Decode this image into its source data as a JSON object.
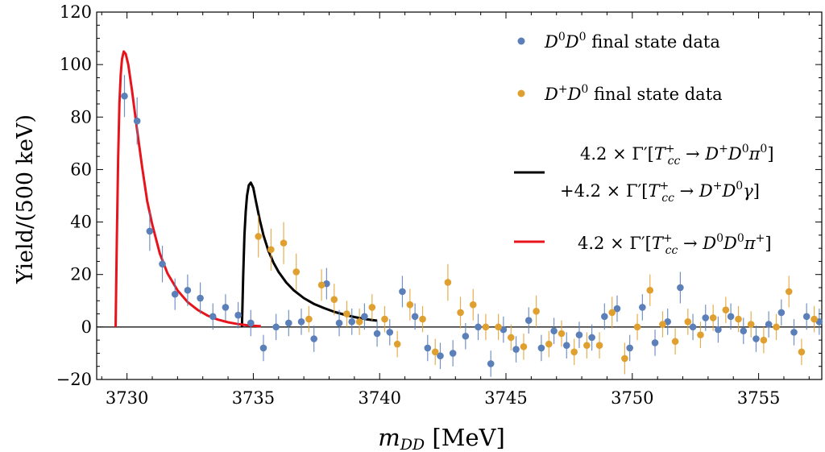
{
  "chart_data": {
    "type": "scatter",
    "xlabel": "m_DD [MeV]",
    "ylabel": "Yield/(500 keV)",
    "xlim": [
      3728.8,
      3757.5
    ],
    "ylim": [
      -20,
      120
    ],
    "x_ticks": [
      3730,
      3735,
      3740,
      3745,
      3750,
      3755
    ],
    "y_ticks": [
      -20,
      0,
      20,
      40,
      60,
      80,
      100,
      120
    ],
    "grid": false,
    "legend_position": "top-right",
    "series": [
      {
        "name": "D⁰D⁰ final state data",
        "kind": "points",
        "color": "#5b7fb8",
        "points": [
          [
            3729.9,
            88,
            8
          ],
          [
            3730.4,
            78.5,
            9
          ],
          [
            3730.9,
            36.5,
            7.5
          ],
          [
            3731.4,
            24,
            7
          ],
          [
            3731.9,
            12.5,
            6
          ],
          [
            3732.4,
            14,
            6
          ],
          [
            3732.9,
            11,
            6
          ],
          [
            3733.4,
            4,
            5
          ],
          [
            3733.9,
            7.5,
            5
          ],
          [
            3734.4,
            4.5,
            5
          ],
          [
            3734.9,
            1.5,
            5
          ],
          [
            3735.4,
            -8,
            5
          ],
          [
            3735.9,
            0,
            5
          ],
          [
            3736.4,
            1.5,
            5
          ],
          [
            3736.9,
            2,
            5
          ],
          [
            3737.4,
            -4.5,
            5
          ],
          [
            3737.9,
            16.5,
            6
          ],
          [
            3738.4,
            1.5,
            5
          ],
          [
            3738.9,
            2,
            5
          ],
          [
            3739.4,
            4,
            5
          ],
          [
            3739.9,
            -2.5,
            5
          ],
          [
            3740.4,
            -2,
            5
          ],
          [
            3740.9,
            13.5,
            6
          ],
          [
            3741.4,
            4,
            5
          ],
          [
            3741.9,
            -8,
            5
          ],
          [
            3742.4,
            -11,
            5
          ],
          [
            3742.9,
            -10,
            5
          ],
          [
            3743.4,
            -3.5,
            5
          ],
          [
            3743.9,
            0,
            5
          ],
          [
            3744.4,
            -14,
            5
          ],
          [
            3744.9,
            -1,
            5
          ],
          [
            3745.4,
            -8.5,
            5
          ],
          [
            3745.9,
            2.5,
            5
          ],
          [
            3746.4,
            -8,
            5
          ],
          [
            3746.9,
            -1.5,
            5
          ],
          [
            3747.4,
            -7,
            5
          ],
          [
            3747.9,
            -3,
            5
          ],
          [
            3748.4,
            -4,
            5
          ],
          [
            3748.9,
            4,
            5
          ],
          [
            3749.4,
            7,
            5
          ],
          [
            3749.9,
            -8,
            5
          ],
          [
            3750.4,
            7.5,
            5
          ],
          [
            3750.9,
            -6,
            5
          ],
          [
            3751.4,
            2,
            5
          ],
          [
            3751.9,
            15,
            6
          ],
          [
            3752.4,
            0,
            5
          ],
          [
            3752.9,
            3.5,
            5
          ],
          [
            3753.4,
            -1,
            5
          ],
          [
            3753.9,
            4,
            5
          ],
          [
            3754.4,
            -1.5,
            5
          ],
          [
            3754.9,
            -4.5,
            5
          ],
          [
            3755.4,
            1,
            5
          ],
          [
            3755.9,
            5.5,
            5
          ],
          [
            3756.4,
            -2,
            5
          ],
          [
            3756.9,
            4,
            5
          ],
          [
            3757.4,
            2,
            5
          ]
        ]
      },
      {
        "name": "D⁺D⁰ final state data",
        "kind": "points",
        "color": "#e0a030",
        "points": [
          [
            3735.2,
            34.5,
            8
          ],
          [
            3735.7,
            29.5,
            8
          ],
          [
            3736.2,
            32,
            8
          ],
          [
            3736.7,
            21,
            7
          ],
          [
            3737.2,
            3,
            5
          ],
          [
            3737.7,
            16,
            6
          ],
          [
            3738.2,
            10.5,
            6
          ],
          [
            3738.7,
            5,
            5
          ],
          [
            3739.2,
            2,
            5
          ],
          [
            3739.7,
            7.5,
            5
          ],
          [
            3740.2,
            3,
            5
          ],
          [
            3740.7,
            -6.5,
            5
          ],
          [
            3741.2,
            8.5,
            6
          ],
          [
            3741.7,
            3,
            5
          ],
          [
            3742.2,
            -9.5,
            5
          ],
          [
            3742.7,
            17,
            7
          ],
          [
            3743.2,
            5.5,
            6
          ],
          [
            3743.7,
            8.5,
            6
          ],
          [
            3744.2,
            0,
            5
          ],
          [
            3744.7,
            0,
            5
          ],
          [
            3745.2,
            -4,
            5
          ],
          [
            3745.7,
            -7.5,
            5
          ],
          [
            3746.2,
            6,
            6
          ],
          [
            3746.7,
            -6.5,
            5
          ],
          [
            3747.2,
            -2.5,
            5
          ],
          [
            3747.7,
            -9.5,
            5
          ],
          [
            3748.2,
            -7,
            5
          ],
          [
            3748.7,
            -7,
            5
          ],
          [
            3749.2,
            5.5,
            6
          ],
          [
            3749.7,
            -12,
            6
          ],
          [
            3750.2,
            0,
            5
          ],
          [
            3750.7,
            14,
            6
          ],
          [
            3751.2,
            1,
            5
          ],
          [
            3751.7,
            -5.5,
            5
          ],
          [
            3752.2,
            2,
            5
          ],
          [
            3752.7,
            -3,
            5
          ],
          [
            3753.2,
            3.5,
            5
          ],
          [
            3753.7,
            6.5,
            5
          ],
          [
            3754.2,
            3,
            5
          ],
          [
            3754.7,
            1,
            5
          ],
          [
            3755.2,
            -5,
            5
          ],
          [
            3755.7,
            0,
            5
          ],
          [
            3756.2,
            13.5,
            6
          ],
          [
            3756.7,
            -9.5,
            5
          ],
          [
            3757.2,
            3,
            5
          ]
        ]
      },
      {
        "name": "4.2 × Γ′[T⁺cc → D⁺D⁰π⁰] +4.2 × Γ′[T⁺cc → D⁺D⁰γ]",
        "kind": "line",
        "color": "#000000",
        "points": [
          [
            3734.55,
            0
          ],
          [
            3734.6,
            20
          ],
          [
            3734.65,
            35
          ],
          [
            3734.7,
            44
          ],
          [
            3734.75,
            50
          ],
          [
            3734.82,
            54
          ],
          [
            3734.9,
            55
          ],
          [
            3735.0,
            53
          ],
          [
            3735.1,
            48
          ],
          [
            3735.25,
            41
          ],
          [
            3735.4,
            35
          ],
          [
            3735.6,
            29
          ],
          [
            3735.8,
            24.5
          ],
          [
            3736.0,
            21
          ],
          [
            3736.3,
            17
          ],
          [
            3736.6,
            14
          ],
          [
            3737.0,
            11
          ],
          [
            3737.4,
            8.8
          ],
          [
            3737.8,
            7.2
          ],
          [
            3738.2,
            5.8
          ],
          [
            3738.6,
            4.7
          ],
          [
            3739.0,
            3.8
          ],
          [
            3739.5,
            2.9
          ],
          [
            3739.9,
            2.4
          ]
        ]
      },
      {
        "name": "4.2 × Γ′[T⁺cc → D⁰D⁰π⁺]",
        "kind": "line",
        "color": "#e8141c",
        "points": [
          [
            3729.55,
            0
          ],
          [
            3729.6,
            35
          ],
          [
            3729.65,
            65
          ],
          [
            3729.7,
            85
          ],
          [
            3729.75,
            96
          ],
          [
            3729.8,
            102
          ],
          [
            3729.87,
            105
          ],
          [
            3729.95,
            104
          ],
          [
            3730.05,
            100
          ],
          [
            3730.2,
            90
          ],
          [
            3730.4,
            75
          ],
          [
            3730.6,
            61
          ],
          [
            3730.8,
            48
          ],
          [
            3731.0,
            39
          ],
          [
            3731.3,
            28
          ],
          [
            3731.6,
            20.5
          ],
          [
            3732.0,
            14
          ],
          [
            3732.4,
            9.5
          ],
          [
            3732.8,
            6.5
          ],
          [
            3733.2,
            4.3
          ],
          [
            3733.6,
            2.8
          ],
          [
            3734.0,
            1.8
          ],
          [
            3734.4,
            1.1
          ],
          [
            3734.8,
            0.6
          ],
          [
            3735.3,
            0.3
          ]
        ]
      }
    ]
  },
  "legend": {
    "entry1": "D⁰D⁰ final state data",
    "entry2": "D⁺D⁰ final state data",
    "entry3_line1": "4.2 × Γ′[T⁺cc → D⁺D⁰π⁰]",
    "entry3_line2": "+4.2 × Γ′[T⁺cc → D⁺D⁰γ]",
    "entry4": "4.2 × Γ′[T⁺cc → D⁰D⁰π⁺]"
  }
}
